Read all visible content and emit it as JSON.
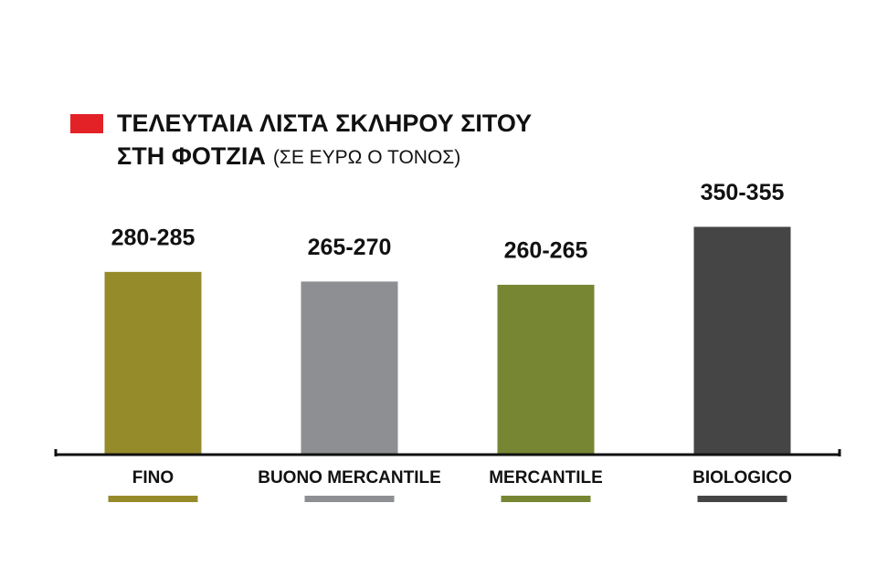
{
  "chart_data": {
    "type": "bar",
    "title": [
      "ΤΕΛΕΥΤΑΙΑ ΛΙΣΤΑ ΣΚΛΗΡΟΥ ΣΙΤΟΥ",
      "ΣΤΗ ΦΟΤΖΙΑ"
    ],
    "subtitle": "(ΣΕ ΕΥΡΩ Ο ΤΟΝΟΣ)",
    "categories": [
      "FINO",
      "BUONO MERCANTILE",
      "MERCANTILE",
      "BIOLOGICO"
    ],
    "values": [
      282.5,
      267.5,
      262.5,
      352.5
    ],
    "value_labels": [
      "280-285",
      "265-270",
      "260-265",
      "350-355"
    ],
    "colors": [
      "#968b2b",
      "#8e8f92",
      "#778633",
      "#454545"
    ],
    "ylim": [
      0,
      400
    ],
    "title_marker_color": "#e32227"
  }
}
